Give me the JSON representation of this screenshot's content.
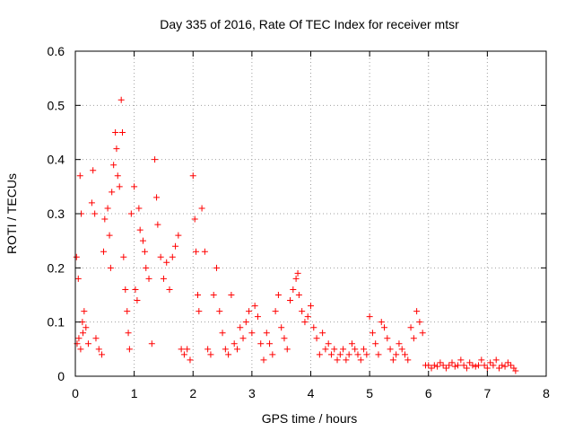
{
  "chart_data": {
    "type": "scatter",
    "title": "Day 335 of 2016, Rate Of TEC Index for receiver mtsr",
    "xlabel": "GPS time / hours",
    "ylabel": "ROTI / TECUs",
    "xlim": [
      0,
      8
    ],
    "ylim": [
      0,
      0.6
    ],
    "xticks": [
      "0",
      "1",
      "2",
      "3",
      "4",
      "5",
      "6",
      "7",
      "8"
    ],
    "yticks": [
      "0",
      "0.1",
      "0.2",
      "0.3",
      "0.4",
      "0.5",
      "0.6"
    ],
    "grid": true,
    "marker": "+",
    "colors": {
      "points": "#ff0000",
      "grid": "#a0a0a0",
      "axes": "#000000"
    },
    "series": [
      {
        "name": "ROTI",
        "points": [
          [
            0.02,
            0.22
          ],
          [
            0.05,
            0.18
          ],
          [
            0.08,
            0.37
          ],
          [
            0.1,
            0.3
          ],
          [
            0.12,
            0.1
          ],
          [
            0.15,
            0.12
          ],
          [
            0.03,
            0.06
          ],
          [
            0.06,
            0.07
          ],
          [
            0.09,
            0.05
          ],
          [
            0.13,
            0.08
          ],
          [
            0.18,
            0.09
          ],
          [
            0.22,
            0.06
          ],
          [
            0.28,
            0.32
          ],
          [
            0.3,
            0.38
          ],
          [
            0.33,
            0.3
          ],
          [
            0.35,
            0.07
          ],
          [
            0.4,
            0.05
          ],
          [
            0.45,
            0.04
          ],
          [
            0.48,
            0.23
          ],
          [
            0.5,
            0.29
          ],
          [
            0.55,
            0.31
          ],
          [
            0.58,
            0.26
          ],
          [
            0.6,
            0.2
          ],
          [
            0.62,
            0.34
          ],
          [
            0.65,
            0.39
          ],
          [
            0.68,
            0.45
          ],
          [
            0.7,
            0.42
          ],
          [
            0.72,
            0.37
          ],
          [
            0.75,
            0.35
          ],
          [
            0.78,
            0.51
          ],
          [
            0.8,
            0.45
          ],
          [
            0.82,
            0.22
          ],
          [
            0.85,
            0.16
          ],
          [
            0.88,
            0.12
          ],
          [
            0.9,
            0.08
          ],
          [
            0.92,
            0.05
          ],
          [
            0.95,
            0.3
          ],
          [
            1.0,
            0.35
          ],
          [
            1.02,
            0.16
          ],
          [
            1.05,
            0.14
          ],
          [
            1.08,
            0.31
          ],
          [
            1.1,
            0.27
          ],
          [
            1.15,
            0.25
          ],
          [
            1.18,
            0.23
          ],
          [
            1.2,
            0.2
          ],
          [
            1.25,
            0.18
          ],
          [
            1.3,
            0.06
          ],
          [
            1.35,
            0.4
          ],
          [
            1.38,
            0.33
          ],
          [
            1.4,
            0.28
          ],
          [
            1.45,
            0.22
          ],
          [
            1.5,
            0.18
          ],
          [
            1.55,
            0.21
          ],
          [
            1.6,
            0.16
          ],
          [
            1.65,
            0.22
          ],
          [
            1.7,
            0.24
          ],
          [
            1.75,
            0.26
          ],
          [
            1.8,
            0.05
          ],
          [
            1.85,
            0.04
          ],
          [
            1.9,
            0.05
          ],
          [
            1.95,
            0.03
          ],
          [
            2.0,
            0.37
          ],
          [
            2.03,
            0.29
          ],
          [
            2.05,
            0.23
          ],
          [
            2.08,
            0.15
          ],
          [
            2.1,
            0.12
          ],
          [
            2.15,
            0.31
          ],
          [
            2.2,
            0.23
          ],
          [
            2.25,
            0.05
          ],
          [
            2.3,
            0.04
          ],
          [
            2.35,
            0.15
          ],
          [
            2.4,
            0.2
          ],
          [
            2.45,
            0.12
          ],
          [
            2.5,
            0.08
          ],
          [
            2.55,
            0.05
          ],
          [
            2.6,
            0.04
          ],
          [
            2.65,
            0.15
          ],
          [
            2.7,
            0.06
          ],
          [
            2.75,
            0.05
          ],
          [
            2.8,
            0.09
          ],
          [
            2.85,
            0.07
          ],
          [
            2.9,
            0.1
          ],
          [
            2.95,
            0.12
          ],
          [
            3.0,
            0.08
          ],
          [
            3.05,
            0.13
          ],
          [
            3.1,
            0.11
          ],
          [
            3.15,
            0.06
          ],
          [
            3.2,
            0.03
          ],
          [
            3.25,
            0.08
          ],
          [
            3.3,
            0.06
          ],
          [
            3.35,
            0.04
          ],
          [
            3.4,
            0.12
          ],
          [
            3.45,
            0.15
          ],
          [
            3.5,
            0.09
          ],
          [
            3.55,
            0.07
          ],
          [
            3.6,
            0.05
          ],
          [
            3.65,
            0.14
          ],
          [
            3.7,
            0.16
          ],
          [
            3.75,
            0.18
          ],
          [
            3.78,
            0.19
          ],
          [
            3.8,
            0.15
          ],
          [
            3.85,
            0.12
          ],
          [
            3.9,
            0.1
          ],
          [
            3.95,
            0.11
          ],
          [
            4.0,
            0.13
          ],
          [
            4.05,
            0.09
          ],
          [
            4.1,
            0.07
          ],
          [
            4.15,
            0.04
          ],
          [
            4.2,
            0.08
          ],
          [
            4.25,
            0.05
          ],
          [
            4.3,
            0.06
          ],
          [
            4.35,
            0.04
          ],
          [
            4.4,
            0.05
          ],
          [
            4.45,
            0.03
          ],
          [
            4.5,
            0.04
          ],
          [
            4.55,
            0.05
          ],
          [
            4.6,
            0.03
          ],
          [
            4.65,
            0.04
          ],
          [
            4.7,
            0.06
          ],
          [
            4.75,
            0.05
          ],
          [
            4.8,
            0.04
          ],
          [
            4.85,
            0.03
          ],
          [
            4.9,
            0.05
          ],
          [
            4.95,
            0.04
          ],
          [
            5.0,
            0.11
          ],
          [
            5.05,
            0.08
          ],
          [
            5.1,
            0.06
          ],
          [
            5.15,
            0.04
          ],
          [
            5.2,
            0.1
          ],
          [
            5.25,
            0.09
          ],
          [
            5.3,
            0.07
          ],
          [
            5.35,
            0.05
          ],
          [
            5.4,
            0.03
          ],
          [
            5.45,
            0.04
          ],
          [
            5.5,
            0.06
          ],
          [
            5.55,
            0.05
          ],
          [
            5.6,
            0.04
          ],
          [
            5.65,
            0.03
          ],
          [
            5.7,
            0.09
          ],
          [
            5.75,
            0.07
          ],
          [
            5.8,
            0.12
          ],
          [
            5.85,
            0.1
          ],
          [
            5.9,
            0.08
          ],
          [
            5.95,
            0.02
          ],
          [
            6.0,
            0.02
          ],
          [
            6.05,
            0.015
          ],
          [
            6.1,
            0.02
          ],
          [
            6.15,
            0.018
          ],
          [
            6.2,
            0.025
          ],
          [
            6.25,
            0.02
          ],
          [
            6.3,
            0.015
          ],
          [
            6.35,
            0.02
          ],
          [
            6.4,
            0.025
          ],
          [
            6.45,
            0.018
          ],
          [
            6.5,
            0.02
          ],
          [
            6.55,
            0.03
          ],
          [
            6.6,
            0.02
          ],
          [
            6.65,
            0.015
          ],
          [
            6.7,
            0.025
          ],
          [
            6.75,
            0.02
          ],
          [
            6.8,
            0.018
          ],
          [
            6.85,
            0.02
          ],
          [
            6.9,
            0.03
          ],
          [
            6.95,
            0.02
          ],
          [
            7.0,
            0.015
          ],
          [
            7.05,
            0.025
          ],
          [
            7.1,
            0.02
          ],
          [
            7.15,
            0.03
          ],
          [
            7.2,
            0.015
          ],
          [
            7.25,
            0.02
          ],
          [
            7.3,
            0.018
          ],
          [
            7.35,
            0.025
          ],
          [
            7.4,
            0.02
          ],
          [
            7.45,
            0.015
          ],
          [
            7.48,
            0.01
          ]
        ]
      }
    ]
  }
}
